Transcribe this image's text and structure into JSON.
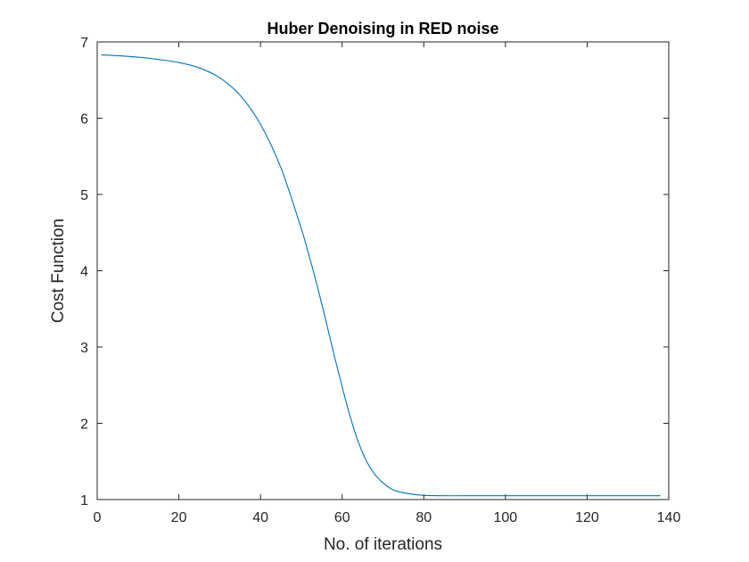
{
  "chart_data": {
    "type": "line",
    "title": "Huber Denoising in RED noise",
    "xlabel": "No. of iterations",
    "ylabel": "Cost Function",
    "xlim": [
      0,
      140
    ],
    "ylim": [
      1,
      7
    ],
    "xticks": [
      0,
      20,
      40,
      60,
      80,
      100,
      120,
      140
    ],
    "yticks": [
      1,
      2,
      3,
      4,
      5,
      6,
      7
    ],
    "xtick_labels": [
      "0",
      "20",
      "40",
      "60",
      "80",
      "100",
      "120",
      "140"
    ],
    "ytick_labels": [
      "1",
      "2",
      "3",
      "4",
      "5",
      "6",
      "7"
    ],
    "grid": false,
    "box": true,
    "series": [
      {
        "color": "#0072BD",
        "x": [
          1,
          5,
          10,
          15,
          20,
          25,
          30,
          35,
          40,
          45,
          50,
          52,
          54,
          56,
          58,
          60,
          62,
          64,
          66,
          68,
          70,
          72,
          74,
          76,
          78,
          80,
          85,
          90,
          100,
          110,
          120,
          130,
          138
        ],
        "y": [
          6.83,
          6.82,
          6.8,
          6.77,
          6.73,
          6.66,
          6.53,
          6.3,
          5.92,
          5.35,
          4.55,
          4.18,
          3.78,
          3.35,
          2.9,
          2.48,
          2.08,
          1.75,
          1.5,
          1.33,
          1.22,
          1.14,
          1.1,
          1.08,
          1.065,
          1.055,
          1.05,
          1.05,
          1.05,
          1.05,
          1.05,
          1.05,
          1.05
        ]
      }
    ]
  }
}
